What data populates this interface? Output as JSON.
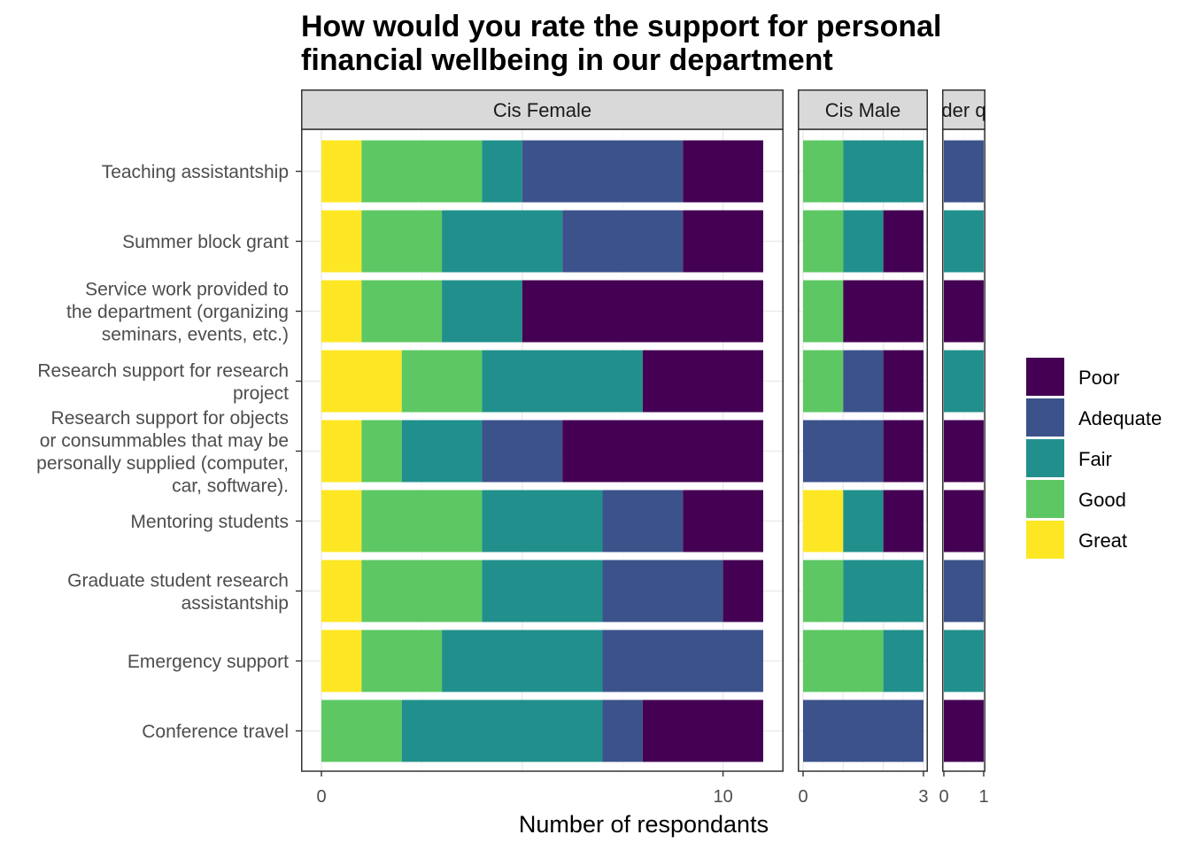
{
  "chart_data": {
    "type": "bar",
    "orientation": "horizontal",
    "stacked": true,
    "title": "How would you rate the support for personal financial wellbeing in our department",
    "title_lines": [
      "How would you rate the support for personal",
      "financial wellbeing in our department"
    ],
    "xlabel": "Number of respondants",
    "ylabel": "",
    "grid": true,
    "legend_position": "right",
    "categories": [
      "Teaching assistantship",
      "Summer block grant",
      "Service work provided to the department (organizing seminars, events, etc.)",
      "Research support for research project",
      "Research support for objects or consummables that may be personally supplied (computer, car, software).",
      "Mentoring students",
      "Graduate student research assistantship",
      "Emergency support",
      "Conference travel"
    ],
    "category_label_lines": [
      [
        "Teaching assistantship"
      ],
      [
        "Summer block grant"
      ],
      [
        "Service work provided to",
        "the department (organizing",
        "seminars, events, etc.)"
      ],
      [
        "Research support for research",
        "project"
      ],
      [
        "Research support for objects",
        "or consummables that may be",
        "personally supplied (computer,",
        "car, software)."
      ],
      [
        "Mentoring students"
      ],
      [
        "Graduate student research",
        "assistantship"
      ],
      [
        "Emergency support"
      ],
      [
        "Conference travel"
      ]
    ],
    "stack_order": [
      "Great",
      "Good",
      "Fair",
      "Adequate",
      "Poor"
    ],
    "legend": [
      {
        "name": "Poor",
        "color": "#440154"
      },
      {
        "name": "Adequate",
        "color": "#3B528B"
      },
      {
        "name": "Fair",
        "color": "#21908C"
      },
      {
        "name": "Good",
        "color": "#5DC863"
      },
      {
        "name": "Great",
        "color": "#FDE725"
      }
    ],
    "facets": [
      {
        "label": "Cis Female",
        "xlim": [
          0,
          11
        ],
        "ticks": [
          0,
          10
        ],
        "values": {
          "Great": [
            1,
            1,
            1,
            2,
            1,
            1,
            1,
            1,
            0
          ],
          "Good": [
            3,
            2,
            2,
            2,
            1,
            3,
            3,
            2,
            2
          ],
          "Fair": [
            1,
            3,
            2,
            4,
            2,
            3,
            3,
            4,
            5
          ],
          "Adequate": [
            4,
            3,
            0,
            0,
            2,
            2,
            3,
            4,
            1
          ],
          "Poor": [
            2,
            2,
            6,
            3,
            5,
            2,
            1,
            0,
            3
          ]
        }
      },
      {
        "label": "Cis Male",
        "xlim": [
          0,
          3
        ],
        "ticks": [
          0,
          3
        ],
        "values": {
          "Great": [
            0,
            0,
            0,
            0,
            0,
            1,
            0,
            0,
            0
          ],
          "Good": [
            1,
            1,
            1,
            1,
            0,
            0,
            1,
            2,
            0
          ],
          "Fair": [
            2,
            1,
            0,
            0,
            0,
            1,
            2,
            1,
            0
          ],
          "Adequate": [
            0,
            0,
            0,
            1,
            2,
            0,
            0,
            0,
            3
          ],
          "Poor": [
            0,
            1,
            2,
            1,
            1,
            1,
            0,
            0,
            0
          ]
        }
      },
      {
        "label": "der q",
        "xlim": [
          0,
          1
        ],
        "ticks": [
          0,
          1
        ],
        "values": {
          "Great": [
            0,
            0,
            0,
            0,
            0,
            0,
            0,
            0,
            0
          ],
          "Good": [
            0,
            0,
            0,
            0,
            0,
            0,
            0,
            0,
            0
          ],
          "Fair": [
            0,
            1,
            0,
            1,
            0,
            0,
            0,
            1,
            0
          ],
          "Adequate": [
            1,
            0,
            0,
            0,
            0,
            0,
            1,
            0,
            0
          ],
          "Poor": [
            0,
            0,
            1,
            0,
            1,
            1,
            0,
            0,
            1
          ]
        }
      }
    ]
  }
}
